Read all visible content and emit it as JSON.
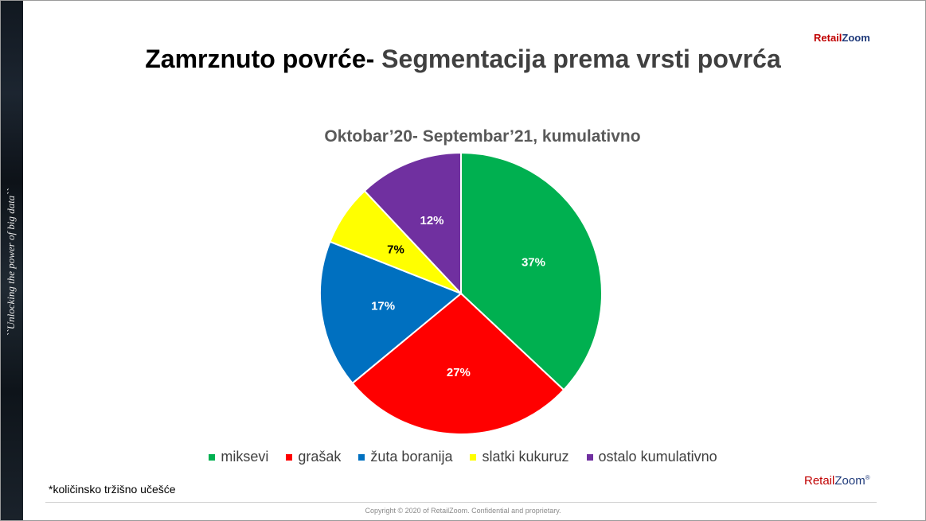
{
  "side_text": "``Unlocking the power of big data``",
  "logo": {
    "part1": "Retail",
    "part2": "Zoom"
  },
  "title": {
    "part1": "Zamrznuto povrće- ",
    "part2": "Segmentacija prema vrsti povrća"
  },
  "footnote": "*količinsko tržišno učešće",
  "copyright": "Copyright © 2020 of RetailZoom. Confidential and proprietary.",
  "chart_data": {
    "type": "pie",
    "title": "Oktobar’20- Septembar’21, kumulativno",
    "categories": [
      "miksevi",
      "grašak",
      "žuta boranija",
      "slatki kukuruz",
      "ostalo kumulativno"
    ],
    "values": [
      37,
      27,
      17,
      7,
      12
    ],
    "labels": [
      "37%",
      "27%",
      "17%",
      "7%",
      "12%"
    ],
    "colors": [
      "#00b050",
      "#ff0000",
      "#0070c0",
      "#ffff00",
      "#7030a0"
    ],
    "label_colors": [
      "#ffffff",
      "#ffffff",
      "#ffffff",
      "#000000",
      "#ffffff"
    ],
    "legend_position": "bottom"
  }
}
